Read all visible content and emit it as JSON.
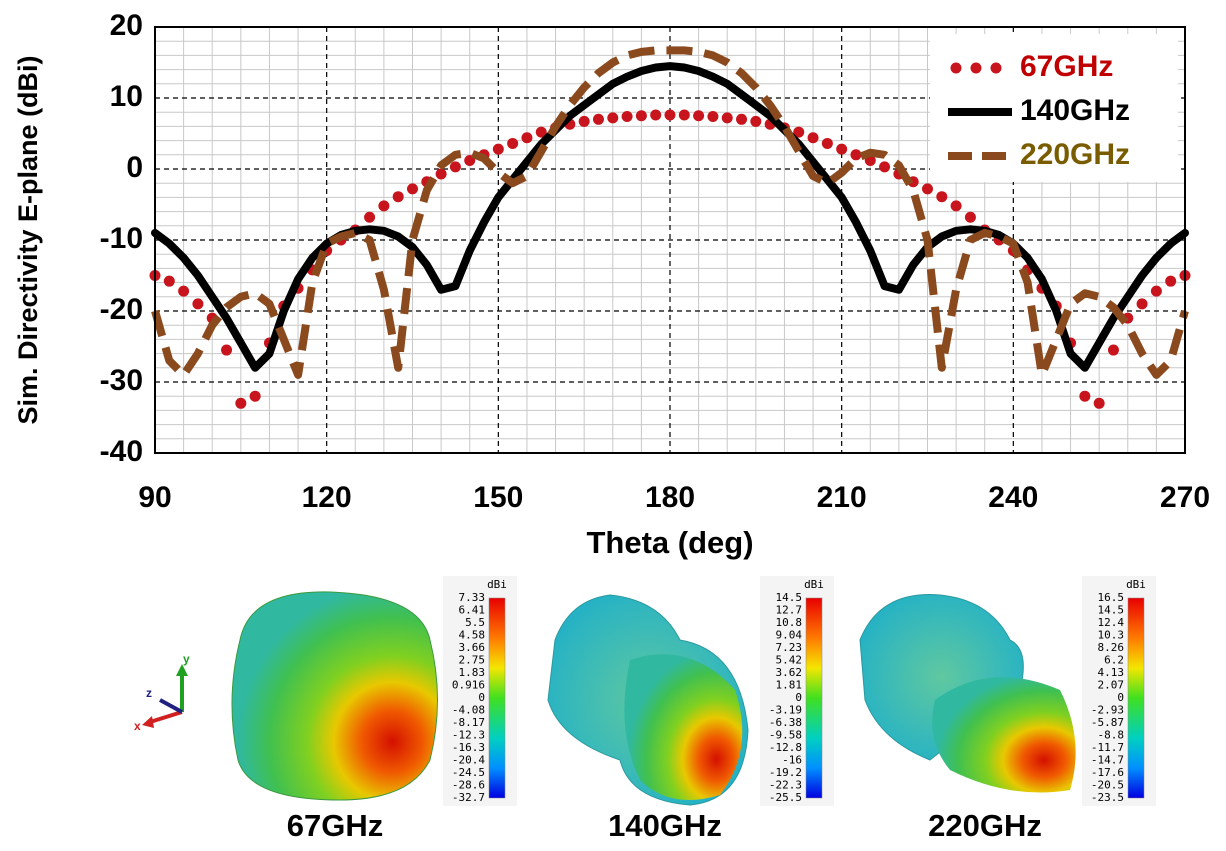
{
  "chart_data": {
    "type": "line",
    "y_label": "Sim. Directivity E-plane (dBi)",
    "x_label": "Theta (deg)",
    "x": [
      90,
      92.5,
      95,
      97.5,
      100,
      102.5,
      105,
      107.5,
      110,
      112.5,
      115,
      117.5,
      120,
      122.5,
      125,
      127.5,
      130,
      132.5,
      135,
      137.5,
      140,
      142.5,
      145,
      147.5,
      150,
      152.5,
      155,
      157.5,
      160,
      162.5,
      165,
      167.5,
      170,
      172.5,
      175,
      177.5,
      180,
      182.5,
      185,
      187.5,
      190,
      192.5,
      195,
      197.5,
      200,
      202.5,
      205,
      207.5,
      210,
      212.5,
      215,
      217.5,
      220,
      222.5,
      225,
      227.5,
      230,
      232.5,
      235,
      237.5,
      240,
      242.5,
      245,
      247.5,
      250,
      252.5,
      255,
      257.5,
      260,
      262.5,
      265,
      267.5,
      270
    ],
    "series": [
      {
        "name": "67GHz",
        "color": "#c8141c",
        "legend_text_color": "#c00000",
        "style": "dotted",
        "values": [
          -15,
          -15.8,
          -17.2,
          -19,
          -21,
          -25.5,
          -33,
          -32,
          -24.5,
          -19.3,
          -16.8,
          -14.2,
          -11.5,
          -10,
          -8.6,
          -6.8,
          -5.2,
          -3.9,
          -2.8,
          -1.8,
          -0.7,
          0.3,
          1.2,
          2,
          2.8,
          3.6,
          4.4,
          5.2,
          5.8,
          6.3,
          6.7,
          7,
          7.2,
          7.4,
          7.5,
          7.6,
          7.6,
          7.6,
          7.5,
          7.4,
          7.2,
          7,
          6.7,
          6.3,
          5.8,
          5.2,
          4.4,
          3.6,
          2.8,
          2,
          1.2,
          0.3,
          -0.7,
          -1.8,
          -2.8,
          -3.9,
          -5.2,
          -6.8,
          -8.6,
          -10,
          -11.5,
          -14.2,
          -16.8,
          -19.3,
          -24.5,
          -32,
          -33,
          -25.5,
          -21,
          -19,
          -17.2,
          -15.8,
          -15
        ]
      },
      {
        "name": "140GHz",
        "color": "#000000",
        "legend_text_color": "#000000",
        "style": "solid",
        "values": [
          -9,
          -10.5,
          -12.5,
          -15,
          -18,
          -21,
          -24.5,
          -28,
          -26,
          -20,
          -15.5,
          -12.5,
          -10.5,
          -9.3,
          -8.7,
          -8.5,
          -8.7,
          -9.5,
          -11,
          -13.5,
          -17,
          -16.5,
          -11.5,
          -7.5,
          -4,
          -1.5,
          1,
          3.5,
          5.5,
          7.5,
          9,
          10.5,
          12,
          13,
          13.8,
          14.3,
          14.5,
          14.3,
          13.8,
          13,
          12,
          10.5,
          9,
          7.5,
          5.5,
          3.5,
          1,
          -1.5,
          -4,
          -7.5,
          -11.5,
          -16.5,
          -17,
          -13.5,
          -11,
          -9.5,
          -8.7,
          -8.5,
          -8.7,
          -9.3,
          -10.5,
          -12.5,
          -15.5,
          -20,
          -26,
          -28,
          -24.5,
          -21,
          -18,
          -15,
          -12.5,
          -10.5,
          -9
        ]
      },
      {
        "name": "220GHz",
        "color": "#8b4a1e",
        "legend_text_color": "#7a5c00",
        "style": "dashed",
        "values": [
          -20,
          -27,
          -29,
          -26,
          -22,
          -19.5,
          -18,
          -17.5,
          -19,
          -24,
          -29,
          -16,
          -10.5,
          -9.5,
          -9,
          -10,
          -17,
          -28,
          -10,
          -3,
          0.5,
          2,
          2.3,
          1.5,
          -0.5,
          -2,
          -1,
          2.5,
          6,
          9,
          11.5,
          13.5,
          15,
          16,
          16.5,
          16.7,
          16.7,
          16.7,
          16.5,
          16,
          15,
          13.5,
          11.5,
          9,
          6,
          2.5,
          -1,
          -2,
          -0.5,
          1.5,
          2.3,
          2,
          0.5,
          -3,
          -10,
          -28,
          -17,
          -10,
          -9,
          -9.5,
          -10.5,
          -16,
          -29,
          -24,
          -19,
          -17.5,
          -18,
          -19.5,
          -22,
          -26,
          -29,
          -27,
          -20
        ]
      }
    ],
    "xlim": [
      90,
      270
    ],
    "xticks": [
      90,
      120,
      150,
      180,
      210,
      240,
      270
    ],
    "ylim": [
      -40,
      20
    ],
    "yticks": [
      -40,
      -30,
      -20,
      -10,
      0,
      10,
      20
    ],
    "grid": true,
    "minor_grid": true,
    "legend": "upper right"
  },
  "patterns": [
    {
      "caption": "67GHz",
      "unit": "dBi",
      "labels": [
        "7.33",
        "6.41",
        "5.5",
        "4.58",
        "3.66",
        "2.75",
        "1.83",
        "0.916",
        "0",
        "-4.08",
        "-8.17",
        "-12.3",
        "-16.3",
        "-20.4",
        "-24.5",
        "-28.6",
        "-32.7"
      ]
    },
    {
      "caption": "140GHz",
      "unit": "dBi",
      "labels": [
        "14.5",
        "12.7",
        "10.8",
        "9.04",
        "7.23",
        "5.42",
        "3.62",
        "1.81",
        "0",
        "-3.19",
        "-6.38",
        "-9.58",
        "-12.8",
        "-16",
        "-19.2",
        "-22.3",
        "-25.5"
      ]
    },
    {
      "caption": "220GHz",
      "unit": "dBi",
      "labels": [
        "16.5",
        "14.5",
        "12.4",
        "10.3",
        "8.26",
        "6.2",
        "4.13",
        "2.07",
        "0",
        "-2.93",
        "-5.87",
        "-8.8",
        "-11.7",
        "-14.7",
        "-17.6",
        "-20.5",
        "-23.5"
      ]
    }
  ],
  "axis_triad": {
    "x": "x",
    "y": "y",
    "z": "z"
  }
}
